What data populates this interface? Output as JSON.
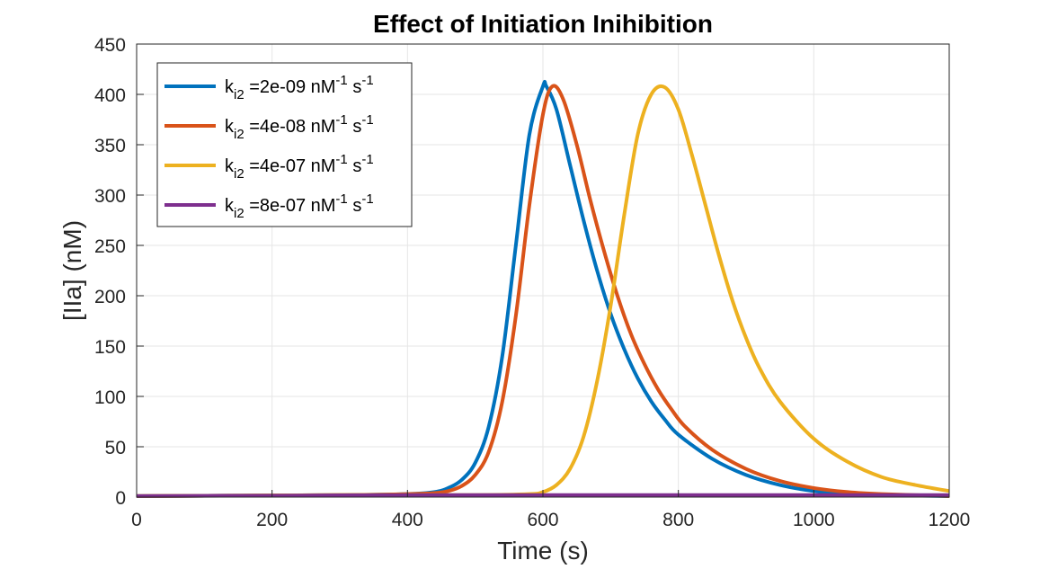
{
  "chart_data": {
    "type": "line",
    "title": "Effect of Initiation Inihibition",
    "xlabel": "Time (s)",
    "ylabel": "[IIa] (nM)",
    "xlim": [
      0,
      1200
    ],
    "ylim": [
      0,
      450
    ],
    "xticks": [
      0,
      200,
      400,
      600,
      800,
      1000,
      1200
    ],
    "yticks": [
      0,
      50,
      100,
      150,
      200,
      250,
      300,
      350,
      400,
      450
    ],
    "grid": true,
    "legend_position": "top-left",
    "series": [
      {
        "name": "k_i2 =2e-09 nM^-1 s^-1",
        "legend": {
          "k": "k",
          "sub": "i2",
          "value": " =2e-09 nM",
          "exp1": "-1",
          "s": " s",
          "exp2": "-1"
        },
        "color": "#0072BD",
        "x": [
          0,
          300,
          400,
          440,
          460,
          480,
          500,
          520,
          540,
          560,
          580,
          600,
          605,
          620,
          640,
          660,
          680,
          700,
          720,
          740,
          760,
          780,
          800,
          850,
          900,
          950,
          1000,
          1050,
          1100,
          1200
        ],
        "y": [
          1,
          2,
          3,
          5,
          9,
          17,
          34,
          70,
          140,
          250,
          360,
          408,
          408,
          385,
          330,
          275,
          225,
          182,
          147,
          118,
          95,
          77,
          62,
          38,
          22,
          12,
          6,
          3,
          2,
          1
        ]
      },
      {
        "name": "k_i2 =4e-08 nM^-1 s^-1",
        "legend": {
          "k": "k",
          "sub": "i2",
          "value": " =4e-08 nM",
          "exp1": "-1",
          "s": " s",
          "exp2": "-1"
        },
        "color": "#D95319",
        "x": [
          0,
          300,
          400,
          440,
          460,
          480,
          500,
          520,
          540,
          560,
          580,
          600,
          614,
          630,
          650,
          670,
          690,
          710,
          730,
          750,
          770,
          790,
          810,
          850,
          900,
          950,
          1000,
          1050,
          1100,
          1200
        ],
        "y": [
          1,
          2,
          3,
          4,
          6,
          11,
          22,
          45,
          95,
          180,
          290,
          380,
          408,
          395,
          350,
          295,
          245,
          200,
          162,
          132,
          107,
          87,
          70,
          47,
          28,
          16,
          9,
          5,
          3,
          1
        ]
      },
      {
        "name": "k_i2 =4e-07 nM^-1 s^-1",
        "legend": {
          "k": "k",
          "sub": "i2",
          "value": " =4e-07 nM",
          "exp1": "-1",
          "s": " s",
          "exp2": "-1"
        },
        "color": "#EDB120",
        "x": [
          0,
          300,
          500,
          580,
          600,
          620,
          640,
          660,
          680,
          700,
          720,
          740,
          760,
          780,
          800,
          820,
          840,
          860,
          880,
          900,
          920,
          950,
          1000,
          1050,
          1100,
          1150,
          1200
        ],
        "y": [
          1,
          2,
          2,
          3,
          5,
          12,
          28,
          60,
          115,
          190,
          280,
          360,
          400,
          407,
          385,
          340,
          290,
          240,
          195,
          158,
          128,
          95,
          58,
          35,
          20,
          12,
          6
        ]
      },
      {
        "name": "k_i2 =8e-07 nM^-1 s^-1",
        "legend": {
          "k": "k",
          "sub": "i2",
          "value": " =8e-07 nM",
          "exp1": "-1",
          "s": " s",
          "exp2": "-1"
        },
        "color": "#7E2F8E",
        "x": [
          0,
          200,
          400,
          600,
          800,
          1000,
          1200
        ],
        "y": [
          1,
          1.5,
          2,
          2,
          2,
          2,
          2
        ]
      }
    ]
  }
}
